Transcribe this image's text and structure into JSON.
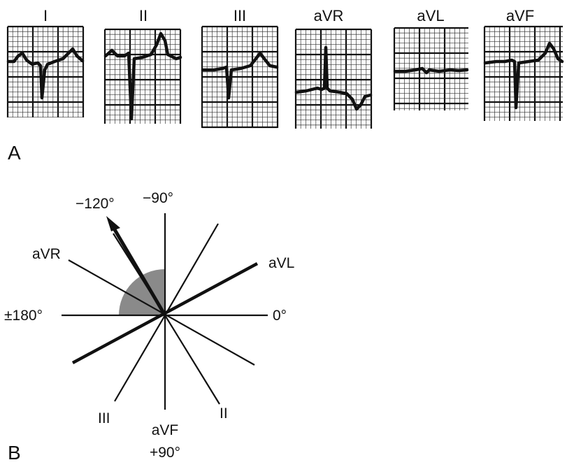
{
  "panel_a": {
    "label": "A",
    "leads": [
      {
        "name": "I"
      },
      {
        "name": "II"
      },
      {
        "name": "III"
      },
      {
        "name": "aVR"
      },
      {
        "name": "aVL"
      },
      {
        "name": "aVF"
      }
    ]
  },
  "panel_b": {
    "label": "B",
    "axis_labels": {
      "minus_120": "−120°",
      "minus_90": "−90°",
      "avr": "aVR",
      "avl": "aVL",
      "plus_minus_180": "±180°",
      "zero": "0°",
      "iii": "III",
      "ii": "II",
      "avf": "aVF",
      "plus_90": "+90°"
    },
    "electrical_axis_degrees": -120,
    "shaded_sector_degrees": [
      -180,
      -90
    ]
  },
  "colors": {
    "ink": "#111111",
    "shade": "#8a8a8a",
    "background": "#ffffff"
  }
}
